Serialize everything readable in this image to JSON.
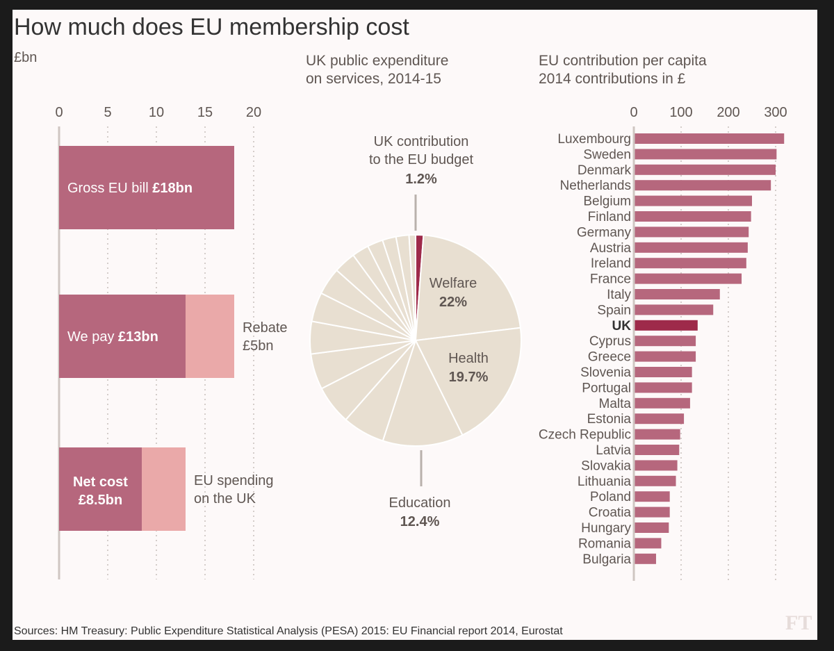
{
  "title": "How much does EU membership cost",
  "unit_label": "£bn",
  "source": "Sources: HM Treasury: Public Expenditure Statistical Analysis (PESA) 2015:  EU Financial report 2014, Eurostat",
  "logo_text": "FT",
  "pie_title_lines": [
    "UK public expenditure",
    "on services, 2014-15"
  ],
  "capita_title_lines": [
    "EU contribution per capita",
    "2014 contributions in £"
  ],
  "colors": {
    "bar_dark": "#b6677d",
    "bar_light": "#eaa9a9",
    "bar_uk": "#9e2a4a",
    "pie_fill": "#e8dfd1",
    "text": "#5f5652",
    "grid": "#b8b0ab"
  },
  "chart_data": [
    {
      "id": "bill",
      "type": "bar",
      "orientation": "horizontal",
      "stacked": true,
      "xlim": [
        0,
        20
      ],
      "ticks": [
        0,
        5,
        10,
        15,
        20
      ],
      "unit": "£bn",
      "bars": [
        {
          "segments": [
            {
              "value": 18,
              "label_plain": "Gross EU bill ",
              "label_bold": "£18bn",
              "style": "dark"
            }
          ]
        },
        {
          "segments": [
            {
              "value": 13,
              "label_plain": "We pay ",
              "label_bold": "£13bn",
              "style": "dark"
            },
            {
              "value": 5,
              "style": "light"
            }
          ],
          "annotation_lines": [
            "Rebate",
            "£5bn"
          ]
        },
        {
          "segments": [
            {
              "value": 8.5,
              "label_bold_lines": [
                "Net cost",
                "£8.5bn"
              ],
              "style": "dark"
            },
            {
              "value": 4.5,
              "style": "light"
            }
          ],
          "annotation_lines": [
            "EU spending",
            "on the UK"
          ]
        }
      ]
    },
    {
      "id": "expenditure",
      "type": "pie",
      "title": "UK public expenditure on services, 2014-15",
      "slices": [
        {
          "label": "UK contribution to the EU budget",
          "label_lines": [
            "UK contribution",
            "to the EU budget"
          ],
          "value": 1.2,
          "display": "1.2%",
          "highlight": true
        },
        {
          "label": "Welfare",
          "value": 22,
          "display": "22%"
        },
        {
          "label": "Health",
          "value": 19.7,
          "display": "19.7%"
        },
        {
          "label": "Education",
          "value": 12.4,
          "display": "12.4%"
        },
        {
          "label": "",
          "value": 6.5
        },
        {
          "label": "",
          "value": 6.0
        },
        {
          "label": "",
          "value": 5.5
        },
        {
          "label": "",
          "value": 5.0
        },
        {
          "label": "",
          "value": 4.5
        },
        {
          "label": "",
          "value": 4.2
        },
        {
          "label": "",
          "value": 3.4
        },
        {
          "label": "",
          "value": 2.6
        },
        {
          "label": "",
          "value": 2.4
        },
        {
          "label": "",
          "value": 2.1
        },
        {
          "label": "",
          "value": 2.0
        },
        {
          "label": "",
          "value": 1.0
        }
      ]
    },
    {
      "id": "per-capita",
      "type": "bar",
      "orientation": "horizontal",
      "title": "EU contribution per capita, 2014 contributions in £",
      "xlim": [
        0,
        330
      ],
      "ticks": [
        0,
        100,
        200,
        300
      ],
      "highlight": "UK",
      "categories": [
        "Luxembourg",
        "Sweden",
        "Denmark",
        "Netherlands",
        "Belgium",
        "Finland",
        "Germany",
        "Austria",
        "Ireland",
        "France",
        "Italy",
        "Spain",
        "UK",
        "Cyprus",
        "Greece",
        "Slovenia",
        "Portugal",
        "Malta",
        "Estonia",
        "Czech Republic",
        "Latvia",
        "Slovakia",
        "Lithuania",
        "Poland",
        "Croatia",
        "Hungary",
        "Romania",
        "Bulgaria"
      ],
      "values": [
        318,
        302,
        300,
        290,
        250,
        248,
        243,
        241,
        238,
        228,
        182,
        168,
        135,
        131,
        131,
        123,
        123,
        119,
        106,
        98,
        96,
        92,
        89,
        76,
        76,
        74,
        58,
        47
      ]
    }
  ]
}
